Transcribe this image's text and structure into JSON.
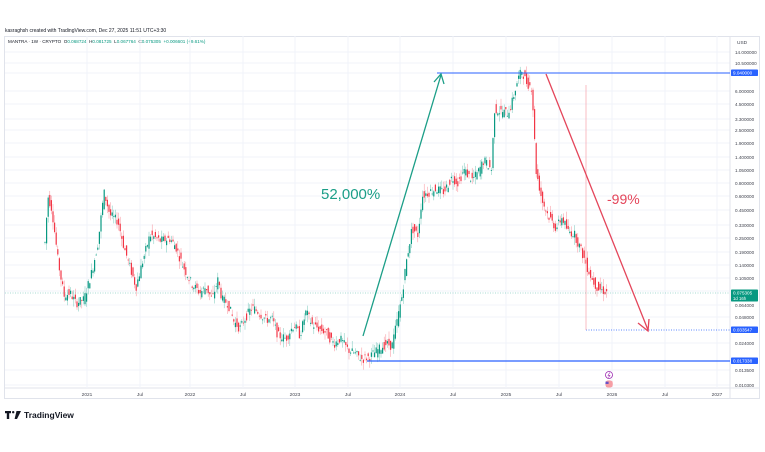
{
  "header": {
    "credit": "kasraghsh created with TradingView.com, Dec 27, 2025 11:51 UTC+3:30",
    "symbol": "MANTRA · 1W · CRYPTO",
    "ohlc": {
      "open_label": "O",
      "open": "0.068724",
      "high_label": "H",
      "high": "0.081725",
      "low_label": "L",
      "low": "0.067764",
      "close_label": "C",
      "close": "0.075305",
      "change": "+0.006601 (+9.61%)"
    }
  },
  "colors": {
    "up": "#089981",
    "down": "#f23645",
    "level_line": "#2962ff",
    "arrow_up": "#1b9e87",
    "arrow_down": "#e4455a",
    "grid": "#f0f3fa",
    "axis_text": "#131722"
  },
  "price_axis": {
    "currency": "USD",
    "ticks": [
      "14.000000",
      "10.500000",
      "8.000000",
      "6.000000",
      "4.500000",
      "3.300000",
      "2.500000",
      "1.900000",
      "1.400000",
      "1.050000",
      "0.800000",
      "0.600000",
      "0.450000",
      "0.330000",
      "0.250000",
      "0.190000",
      "0.140000",
      "0.105000",
      "0.080000",
      "0.064000",
      "0.048000",
      "0.024000",
      "0.013500",
      "0.010300"
    ],
    "badges": [
      {
        "value": "9.040000",
        "sub": "",
        "color": "#2962ff"
      },
      {
        "value": "0.075305",
        "sub": "1d 16h",
        "color": "#089981"
      },
      {
        "value": "0.033547",
        "sub": "",
        "color": "#2962ff"
      },
      {
        "value": "0.017338",
        "sub": "",
        "color": "#2962ff"
      }
    ]
  },
  "time_axis": {
    "ticks": [
      "2021",
      "Jul",
      "2022",
      "Jul",
      "2023",
      "Jul",
      "2024",
      "Jul",
      "2025",
      "Jul",
      "2026",
      "Jul",
      "2027"
    ]
  },
  "annotations": {
    "rise_label": "52,000%",
    "drop_label": "-99%",
    "event_icon": "event-marker-icon",
    "flag_icon": "us-flag-icon"
  },
  "branding": {
    "logo_icon": "tradingview-logo-icon",
    "name": "TradingView"
  },
  "chart_data": {
    "type": "candlestick",
    "title": "MANTRA · 1W · CRYPTO",
    "scale": "logarithmic",
    "ylabel": "USD",
    "ylim": [
      0.0103,
      14.0
    ],
    "x": [
      "2020-10",
      "2020-12",
      "2021-02",
      "2021-04",
      "2021-06",
      "2021-08",
      "2021-10",
      "2021-12",
      "2022-02",
      "2022-04",
      "2022-06",
      "2022-08",
      "2022-10",
      "2022-12",
      "2023-02",
      "2023-04",
      "2023-06",
      "2023-08",
      "2023-10",
      "2023-12",
      "2024-02",
      "2024-04",
      "2024-06",
      "2024-08",
      "2024-10",
      "2024-12",
      "2025-02",
      "2025-04",
      "2025-06",
      "2025-08",
      "2025-10",
      "2025-12"
    ],
    "series": [
      {
        "name": "MANTRA close (approx)",
        "values": [
          0.2,
          0.55,
          0.075,
          0.065,
          0.55,
          0.3,
          0.3,
          0.2,
          0.12,
          0.068,
          0.04,
          0.05,
          0.036,
          0.03,
          0.048,
          0.036,
          0.025,
          0.018,
          0.02,
          0.055,
          0.6,
          1.0,
          0.95,
          1.05,
          1.4,
          4.0,
          5.5,
          8.5,
          0.45,
          0.2,
          0.11,
          0.075
        ]
      }
    ],
    "levels": {
      "all_time_high": 9.04,
      "cycle_low": 0.017338,
      "target": 0.033547,
      "last": 0.075305
    },
    "annotations": [
      {
        "text": "52,000%",
        "type": "arrow-up",
        "from": [
          "2023-10",
          0.025
        ],
        "to": [
          "2024-05",
          9.04
        ]
      },
      {
        "text": "-99%",
        "type": "arrow-down",
        "from": [
          "2025-04",
          9.04
        ],
        "to": [
          "2026-05",
          0.033547
        ]
      }
    ],
    "grid": true
  }
}
